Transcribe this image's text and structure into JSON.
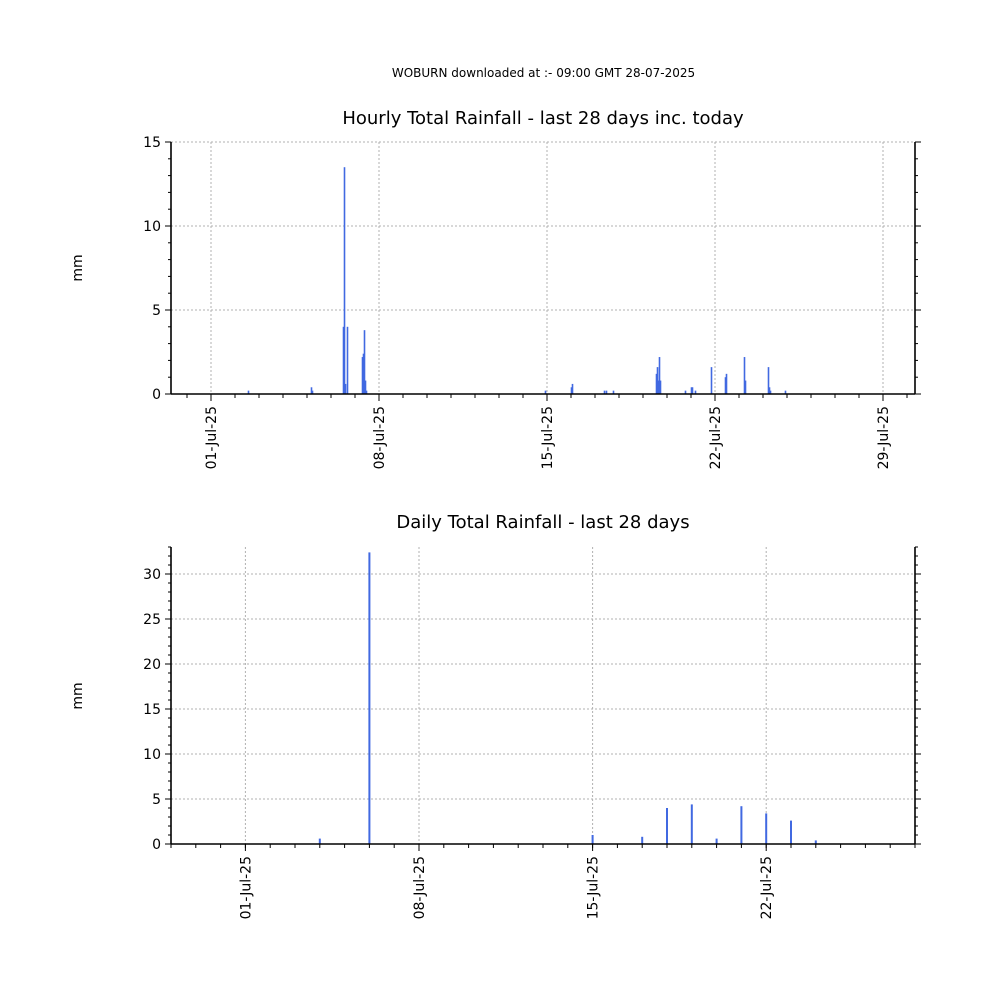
{
  "header": {
    "title": "WOBURN downloaded at :- 09:00 GMT 28-07-2025"
  },
  "chart_data": [
    {
      "type": "bar",
      "title": "Hourly Total Rainfall - last 28 days inc. today",
      "xlabel": "",
      "ylabel": "mm",
      "xlim": [
        "2025-06-29 08:00",
        "2025-07-30 08:00"
      ],
      "ylim": [
        0,
        15
      ],
      "yticks": [
        0,
        5,
        10,
        15
      ],
      "xticks": [
        "01-Jul-25",
        "08-Jul-25",
        "15-Jul-25",
        "22-Jul-25",
        "29-Jul-25"
      ],
      "grid": true,
      "color": "#4169e1",
      "bars": [
        {
          "x": "2025-07-02 13:00",
          "y": 0.2
        },
        {
          "x": "2025-07-05 04:00",
          "y": 0.4
        },
        {
          "x": "2025-07-05 05:00",
          "y": 0.2
        },
        {
          "x": "2025-07-06 12:00",
          "y": 4.0
        },
        {
          "x": "2025-07-06 13:00",
          "y": 13.5
        },
        {
          "x": "2025-07-06 14:00",
          "y": 0.6
        },
        {
          "x": "2025-07-06 16:00",
          "y": 4.0
        },
        {
          "x": "2025-07-07 07:00",
          "y": 2.2
        },
        {
          "x": "2025-07-07 08:00",
          "y": 2.4
        },
        {
          "x": "2025-07-07 09:00",
          "y": 3.8
        },
        {
          "x": "2025-07-07 10:00",
          "y": 0.8
        },
        {
          "x": "2025-07-07 11:00",
          "y": 0.2
        },
        {
          "x": "2025-07-14 22:00",
          "y": 0.2
        },
        {
          "x": "2025-07-16 00:00",
          "y": 0.4
        },
        {
          "x": "2025-07-16 01:00",
          "y": 0.6
        },
        {
          "x": "2025-07-17 09:00",
          "y": 0.2
        },
        {
          "x": "2025-07-17 11:00",
          "y": 0.2
        },
        {
          "x": "2025-07-17 18:00",
          "y": 0.2
        },
        {
          "x": "2025-07-19 13:00",
          "y": 1.2
        },
        {
          "x": "2025-07-19 14:00",
          "y": 1.6
        },
        {
          "x": "2025-07-19 15:00",
          "y": 0.8
        },
        {
          "x": "2025-07-19 16:00",
          "y": 2.2
        },
        {
          "x": "2025-07-19 17:00",
          "y": 0.8
        },
        {
          "x": "2025-07-20 18:00",
          "y": 0.2
        },
        {
          "x": "2025-07-21 00:00",
          "y": 0.4
        },
        {
          "x": "2025-07-21 01:00",
          "y": 0.4
        },
        {
          "x": "2025-07-21 04:00",
          "y": 0.2
        },
        {
          "x": "2025-07-21 20:00",
          "y": 1.6
        },
        {
          "x": "2025-07-22 10:00",
          "y": 1.0
        },
        {
          "x": "2025-07-22 11:00",
          "y": 1.2
        },
        {
          "x": "2025-07-23 05:00",
          "y": 2.2
        },
        {
          "x": "2025-07-23 06:00",
          "y": 0.8
        },
        {
          "x": "2025-07-24 05:00",
          "y": 1.6
        },
        {
          "x": "2025-07-24 06:00",
          "y": 0.4
        },
        {
          "x": "2025-07-24 07:00",
          "y": 0.2
        },
        {
          "x": "2025-07-24 22:00",
          "y": 0.2
        }
      ]
    },
    {
      "type": "bar",
      "title": "Daily Total Rainfall - last 28 days",
      "xlabel": "",
      "ylabel": "mm",
      "xlim": [
        "2025-06-28",
        "2025-07-28"
      ],
      "ylim": [
        0,
        33
      ],
      "yticks": [
        0,
        5,
        10,
        15,
        20,
        25,
        30
      ],
      "xticks": [
        "01-Jul-25",
        "08-Jul-25",
        "15-Jul-25",
        "22-Jul-25"
      ],
      "grid": true,
      "color": "#4169e1",
      "bars": [
        {
          "x": "2025-07-04",
          "y": 0.6
        },
        {
          "x": "2025-07-06",
          "y": 32.4
        },
        {
          "x": "2025-07-15",
          "y": 1.0
        },
        {
          "x": "2025-07-17",
          "y": 0.8
        },
        {
          "x": "2025-07-18",
          "y": 4.0
        },
        {
          "x": "2025-07-19",
          "y": 4.4
        },
        {
          "x": "2025-07-20",
          "y": 0.6
        },
        {
          "x": "2025-07-21",
          "y": 4.2
        },
        {
          "x": "2025-07-22",
          "y": 3.4
        },
        {
          "x": "2025-07-23",
          "y": 2.6
        },
        {
          "x": "2025-07-24",
          "y": 0.4
        }
      ]
    }
  ]
}
